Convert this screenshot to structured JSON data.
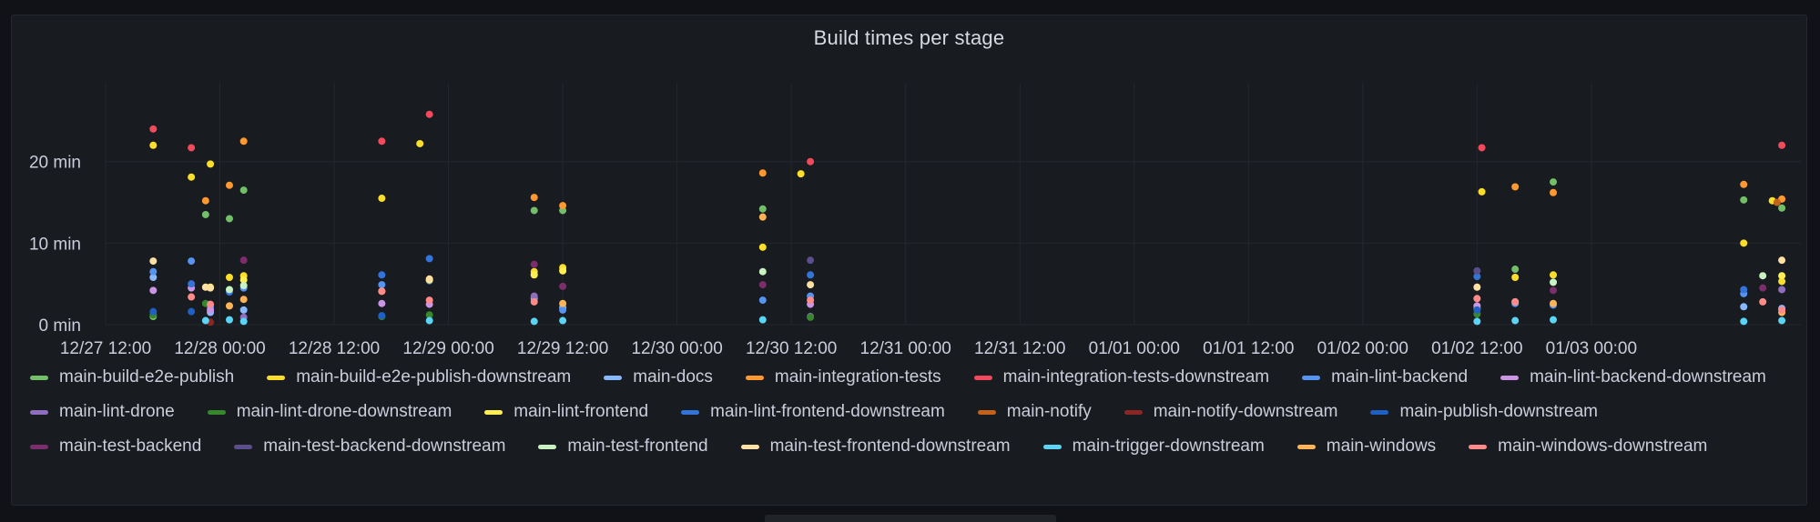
{
  "panel": {
    "title": "Build times per stage"
  },
  "chart_data": {
    "type": "scatter",
    "title": "Build times per stage",
    "xlabel": "",
    "ylabel": "",
    "x_ticks": [
      "12/27 12:00",
      "12/28 00:00",
      "12/28 12:00",
      "12/29 00:00",
      "12/29 12:00",
      "12/30 00:00",
      "12/30 12:00",
      "12/31 00:00",
      "12/31 12:00",
      "01/01 00:00",
      "01/01 12:00",
      "01/02 00:00",
      "01/02 12:00",
      "01/03 00:00"
    ],
    "y_ticks": [
      "0 min",
      "10 min",
      "20 min"
    ],
    "xlim_hours": [
      0,
      178
    ],
    "ylim": [
      0,
      29
    ],
    "grid": true,
    "legend_placement": "bottom",
    "series": [
      {
        "name": "main-build-e2e-publish",
        "color": "#73bf69",
        "points": [
          [
            5,
            1.0
          ],
          [
            10.5,
            13.5
          ],
          [
            13,
            13.0
          ],
          [
            14.5,
            16.5
          ],
          [
            45,
            14.0
          ],
          [
            48,
            14.0
          ],
          [
            69,
            14.2
          ],
          [
            148,
            6.8
          ],
          [
            152,
            17.5
          ],
          [
            172,
            15.3
          ],
          [
            176,
            14.3
          ]
        ]
      },
      {
        "name": "main-build-e2e-publish-downstream",
        "color": "#fade2a",
        "points": [
          [
            5,
            22.0
          ],
          [
            9,
            18.1
          ],
          [
            11,
            19.7
          ],
          [
            13,
            5.8
          ],
          [
            14.5,
            6.0
          ],
          [
            29,
            15.5
          ],
          [
            33,
            22.2
          ],
          [
            45,
            6.5
          ],
          [
            48,
            7.0
          ],
          [
            69,
            9.5
          ],
          [
            73,
            18.5
          ],
          [
            144.5,
            16.3
          ],
          [
            148,
            5.8
          ],
          [
            152,
            6.1
          ],
          [
            172,
            10.0
          ],
          [
            175,
            15.2
          ],
          [
            176,
            5.3
          ]
        ]
      },
      {
        "name": "main-docs",
        "color": "#8ab8ff",
        "points": [
          [
            5,
            5.8
          ],
          [
            11,
            1.5
          ],
          [
            14.5,
            1.8
          ],
          [
            45,
            3.2
          ],
          [
            48,
            2.1
          ],
          [
            144,
            2.0
          ],
          [
            172,
            2.2
          ],
          [
            176,
            2.0
          ]
        ]
      },
      {
        "name": "main-integration-tests",
        "color": "#ff9830",
        "points": [
          [
            10.5,
            15.2
          ],
          [
            13,
            17.1
          ],
          [
            14.5,
            22.5
          ],
          [
            45,
            15.6
          ],
          [
            48,
            14.6
          ],
          [
            69,
            18.6
          ],
          [
            148,
            16.9
          ],
          [
            152,
            16.2
          ],
          [
            172,
            17.2
          ],
          [
            176,
            15.4
          ]
        ]
      },
      {
        "name": "main-integration-tests-downstream",
        "color": "#f2495c",
        "points": [
          [
            5,
            24.0
          ],
          [
            9,
            21.7
          ],
          [
            29,
            22.5
          ],
          [
            34,
            25.8
          ],
          [
            74,
            20.0
          ],
          [
            144.5,
            21.7
          ],
          [
            176,
            22.0
          ]
        ]
      },
      {
        "name": "main-lint-backend",
        "color": "#5794f2",
        "points": [
          [
            5,
            6.5
          ],
          [
            9,
            7.8
          ],
          [
            11,
            2.2
          ],
          [
            14.5,
            4.5
          ],
          [
            29,
            4.9
          ],
          [
            34,
            5.4
          ],
          [
            48,
            1.8
          ],
          [
            69,
            3.0
          ],
          [
            74,
            3.5
          ],
          [
            148,
            2.6
          ],
          [
            152,
            2.4
          ],
          [
            172,
            3.8
          ]
        ]
      },
      {
        "name": "main-lint-backend-downstream",
        "color": "#ca95e5",
        "points": [
          [
            5,
            4.2
          ],
          [
            9,
            4.5
          ],
          [
            11,
            1.8
          ],
          [
            29,
            2.6
          ],
          [
            34,
            2.5
          ],
          [
            74,
            2.5
          ],
          [
            144,
            2.3
          ]
        ]
      },
      {
        "name": "main-lint-drone",
        "color": "#8f6dbf",
        "points": [
          [
            14.5,
            0.9
          ],
          [
            45,
            3.5
          ],
          [
            74,
            1.0
          ],
          [
            176,
            4.3
          ]
        ]
      },
      {
        "name": "main-lint-drone-downstream",
        "color": "#37872d",
        "points": [
          [
            5,
            1.2
          ],
          [
            10.5,
            2.6
          ],
          [
            29,
            1.0
          ],
          [
            34,
            1.2
          ],
          [
            74,
            0.9
          ],
          [
            144,
            1.3
          ]
        ]
      },
      {
        "name": "main-lint-frontend",
        "color": "#ffee52",
        "points": [
          [
            11,
            4.6
          ],
          [
            14.5,
            5.5
          ],
          [
            34,
            5.5
          ],
          [
            45,
            6.1
          ],
          [
            48,
            6.6
          ],
          [
            176,
            6.0
          ]
        ]
      },
      {
        "name": "main-lint-frontend-downstream",
        "color": "#3274d9",
        "points": [
          [
            9,
            5.0
          ],
          [
            13,
            4.0
          ],
          [
            29,
            6.1
          ],
          [
            34,
            8.1
          ],
          [
            74,
            6.1
          ],
          [
            144,
            5.9
          ],
          [
            172,
            4.3
          ]
        ]
      },
      {
        "name": "main-notify",
        "color": "#c4621a",
        "points": [
          [
            175.5,
            15.0
          ]
        ]
      },
      {
        "name": "main-notify-downstream",
        "color": "#8a2624",
        "points": [
          [
            11,
            0.3
          ]
        ]
      },
      {
        "name": "main-publish-downstream",
        "color": "#1f60c4",
        "points": [
          [
            5,
            1.6
          ],
          [
            9,
            1.6
          ],
          [
            29,
            1.1
          ],
          [
            144,
            1.8
          ]
        ]
      },
      {
        "name": "main-test-backend",
        "color": "#7c2d6b",
        "points": [
          [
            14.5,
            7.9
          ],
          [
            45,
            7.4
          ],
          [
            48,
            4.7
          ],
          [
            69,
            4.9
          ],
          [
            152,
            4.2
          ],
          [
            174,
            4.5
          ]
        ]
      },
      {
        "name": "main-test-backend-downstream",
        "color": "#5c4d8c",
        "points": [
          [
            74,
            7.9
          ],
          [
            144,
            6.6
          ]
        ]
      },
      {
        "name": "main-test-frontend",
        "color": "#c8f2c2",
        "points": [
          [
            13,
            4.3
          ],
          [
            14.5,
            4.8
          ],
          [
            69,
            6.5
          ],
          [
            148,
            2.8
          ],
          [
            152,
            5.2
          ],
          [
            174,
            6.0
          ]
        ]
      },
      {
        "name": "main-test-frontend-downstream",
        "color": "#ffe0a3",
        "points": [
          [
            5,
            7.8
          ],
          [
            10.5,
            4.6
          ],
          [
            11,
            4.5
          ],
          [
            29,
            4.1
          ],
          [
            34,
            5.6
          ],
          [
            74,
            4.9
          ],
          [
            144,
            4.6
          ],
          [
            176,
            7.9
          ]
        ]
      },
      {
        "name": "main-trigger-downstream",
        "color": "#5ad5f5",
        "points": [
          [
            10.5,
            0.5
          ],
          [
            13,
            0.6
          ],
          [
            14.5,
            0.4
          ],
          [
            34,
            0.5
          ],
          [
            45,
            0.4
          ],
          [
            48,
            0.5
          ],
          [
            69,
            0.6
          ],
          [
            144,
            0.4
          ],
          [
            148,
            0.5
          ],
          [
            152,
            0.6
          ],
          [
            172,
            0.4
          ],
          [
            176,
            0.5
          ]
        ]
      },
      {
        "name": "main-windows",
        "color": "#ffb357",
        "points": [
          [
            13,
            2.3
          ],
          [
            14.5,
            3.1
          ],
          [
            48,
            2.6
          ],
          [
            69,
            13.2
          ],
          [
            152,
            2.6
          ],
          [
            176,
            1.5
          ]
        ]
      },
      {
        "name": "main-windows-downstream",
        "color": "#ff8a8a",
        "points": [
          [
            9,
            3.4
          ],
          [
            11,
            2.5
          ],
          [
            29,
            4.1
          ],
          [
            34,
            3.0
          ],
          [
            45,
            2.8
          ],
          [
            74,
            3.0
          ],
          [
            144,
            3.2
          ],
          [
            148,
            2.8
          ],
          [
            174,
            2.8
          ],
          [
            176,
            1.8
          ]
        ]
      }
    ]
  }
}
